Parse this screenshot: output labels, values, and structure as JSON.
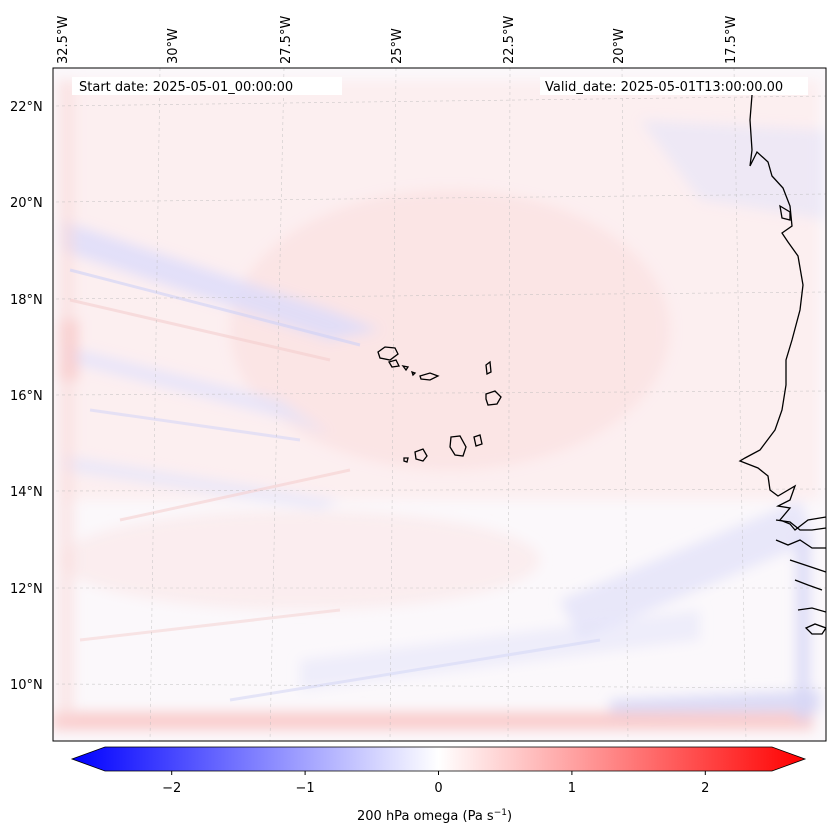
{
  "map": {
    "start_date_label": "Start date: 2025-05-01_00:00:00",
    "valid_date_label": "Valid_date: 2025-05-01T13:00:00.00",
    "lon_labels": [
      "32.5°W",
      "30°W",
      "27.5°W",
      "25°W",
      "22.5°W",
      "20°W",
      "17.5°W"
    ],
    "lat_labels": [
      "22°N",
      "20°N",
      "18°N",
      "16°N",
      "14°N",
      "12°N",
      "10°N"
    ],
    "field": "200 hPa omega",
    "features": [
      "Cabo Verde islands",
      "West African coastline"
    ]
  },
  "colorbar": {
    "label_main": "200 hPa omega (Pa s",
    "label_sup": "−1",
    "label_tail": ")",
    "ticks": [
      "−2",
      "−1",
      "0",
      "1",
      "2"
    ],
    "tick_values": [
      -2,
      -1,
      0,
      1,
      2
    ],
    "range": [
      -2.5,
      2.5
    ],
    "low_color": "#0000ff",
    "mid_color": "#ffffff",
    "high_color": "#ff0000"
  }
}
